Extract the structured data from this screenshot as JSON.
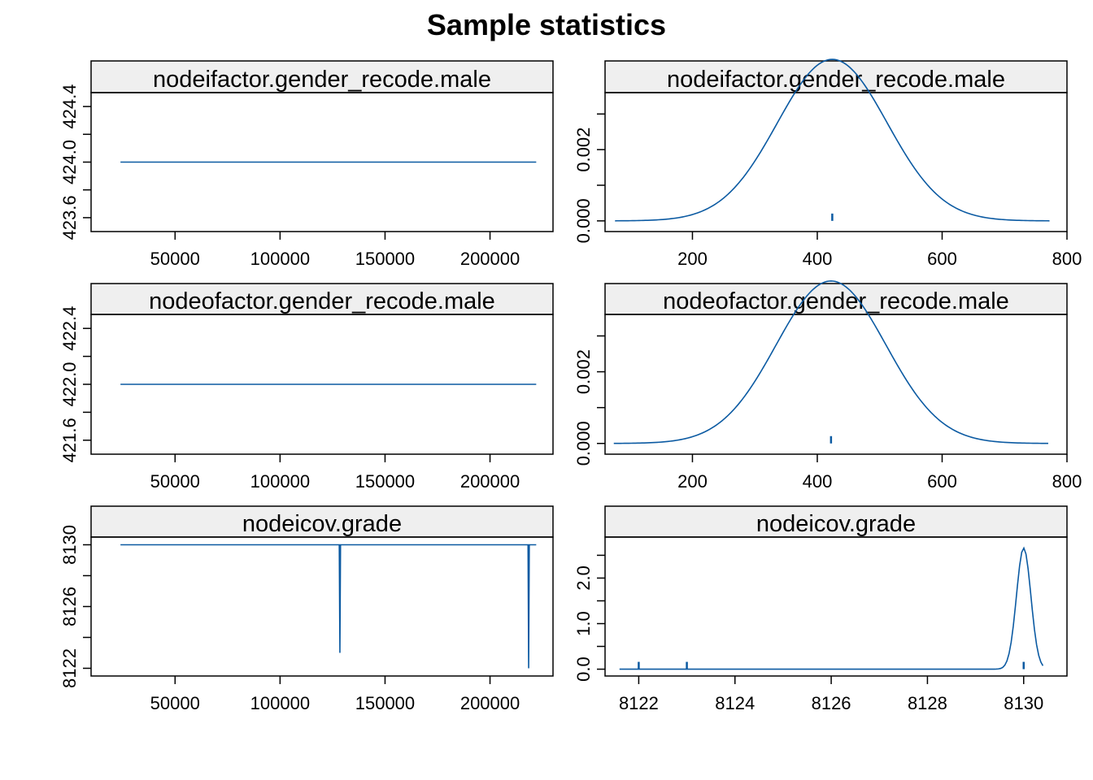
{
  "title": "Sample statistics",
  "colors": {
    "line": "#0b5aa2",
    "strip": "#efefef",
    "axis": "#000000",
    "background": "#ffffff"
  },
  "chart_data": [
    {
      "type": "line",
      "panel": "trace",
      "title": "nodeifactor.gender_recode.male",
      "xlim": [
        10000,
        230000
      ],
      "ylim": [
        423.5,
        424.5
      ],
      "xticks": [
        50000,
        100000,
        150000,
        200000
      ],
      "xtick_labels": [
        "50000",
        "100000",
        "150000",
        "200000"
      ],
      "yticks": [
        423.6,
        423.8,
        424.0,
        424.2,
        424.4
      ],
      "ytick_labels": [
        "423.6",
        "",
        "424.0",
        "",
        "424.4"
      ],
      "x": [
        24000,
        222000
      ],
      "y": [
        424,
        424
      ],
      "grid": false
    },
    {
      "type": "line",
      "panel": "density",
      "title": "nodeifactor.gender_recode.male",
      "xlim": [
        60,
        800
      ],
      "ylim": [
        -0.0003,
        0.0036
      ],
      "xticks": [
        200,
        400,
        600,
        800
      ],
      "xtick_labels": [
        "200",
        "400",
        "600",
        "800"
      ],
      "yticks": [
        0,
        0.001,
        0.002,
        0.003
      ],
      "ytick_labels": [
        "0.000",
        "",
        "0.002",
        ""
      ],
      "density": {
        "mean": 424,
        "sd": 88,
        "from": 76,
        "to": 772
      },
      "rug": [
        424
      ],
      "grid": false
    },
    {
      "type": "line",
      "panel": "trace",
      "title": "nodeofactor.gender_recode.male",
      "xlim": [
        10000,
        230000
      ],
      "ylim": [
        421.5,
        422.5
      ],
      "xticks": [
        50000,
        100000,
        150000,
        200000
      ],
      "xtick_labels": [
        "50000",
        "100000",
        "150000",
        "200000"
      ],
      "yticks": [
        421.6,
        421.8,
        422.0,
        422.2,
        422.4
      ],
      "ytick_labels": [
        "421.6",
        "",
        "422.0",
        "",
        "422.4"
      ],
      "x": [
        24000,
        222000
      ],
      "y": [
        422,
        422
      ],
      "grid": false
    },
    {
      "type": "line",
      "panel": "density",
      "title": "nodeofactor.gender_recode.male",
      "xlim": [
        60,
        800
      ],
      "ylim": [
        -0.0003,
        0.0036
      ],
      "xticks": [
        200,
        400,
        600,
        800
      ],
      "xtick_labels": [
        "200",
        "400",
        "600",
        "800"
      ],
      "yticks": [
        0,
        0.001,
        0.002,
        0.003
      ],
      "ytick_labels": [
        "0.000",
        "",
        "0.002",
        ""
      ],
      "density": {
        "mean": 422,
        "sd": 88,
        "from": 74,
        "to": 770
      },
      "rug": [
        422
      ],
      "grid": false
    },
    {
      "type": "line",
      "panel": "trace",
      "title": "nodeicov.grade",
      "xlim": [
        10000,
        230000
      ],
      "ylim": [
        8121.5,
        8130.5
      ],
      "xticks": [
        50000,
        100000,
        150000,
        200000
      ],
      "xtick_labels": [
        "50000",
        "100000",
        "150000",
        "200000"
      ],
      "yticks": [
        8122,
        8124,
        8126,
        8128,
        8130
      ],
      "ytick_labels": [
        "8122",
        "",
        "8126",
        "",
        "8130"
      ],
      "x": [
        24000,
        128200,
        128500,
        128800,
        218100,
        218400,
        218700,
        222000
      ],
      "y": [
        8130,
        8130,
        8123,
        8130,
        8130,
        8122,
        8130,
        8130
      ],
      "grid": false
    },
    {
      "type": "line",
      "panel": "density",
      "title": "nodeicov.grade",
      "xlim": [
        8121.3,
        8130.9
      ],
      "ylim": [
        -0.15,
        2.9
      ],
      "xticks": [
        8122,
        8124,
        8126,
        8128,
        8130
      ],
      "xtick_labels": [
        "8122",
        "8124",
        "8126",
        "8128",
        "8130"
      ],
      "yticks": [
        0,
        0.5,
        1.0,
        1.5,
        2.0,
        2.5
      ],
      "ytick_labels": [
        "0.0",
        "",
        "1.0",
        "",
        "2.0",
        ""
      ],
      "density": {
        "mean": 8130,
        "sd": 0.15,
        "from": 8121.6,
        "to": 8130.4,
        "peak": 2.66
      },
      "rug": [
        8122,
        8123,
        8130
      ],
      "grid": false
    }
  ]
}
